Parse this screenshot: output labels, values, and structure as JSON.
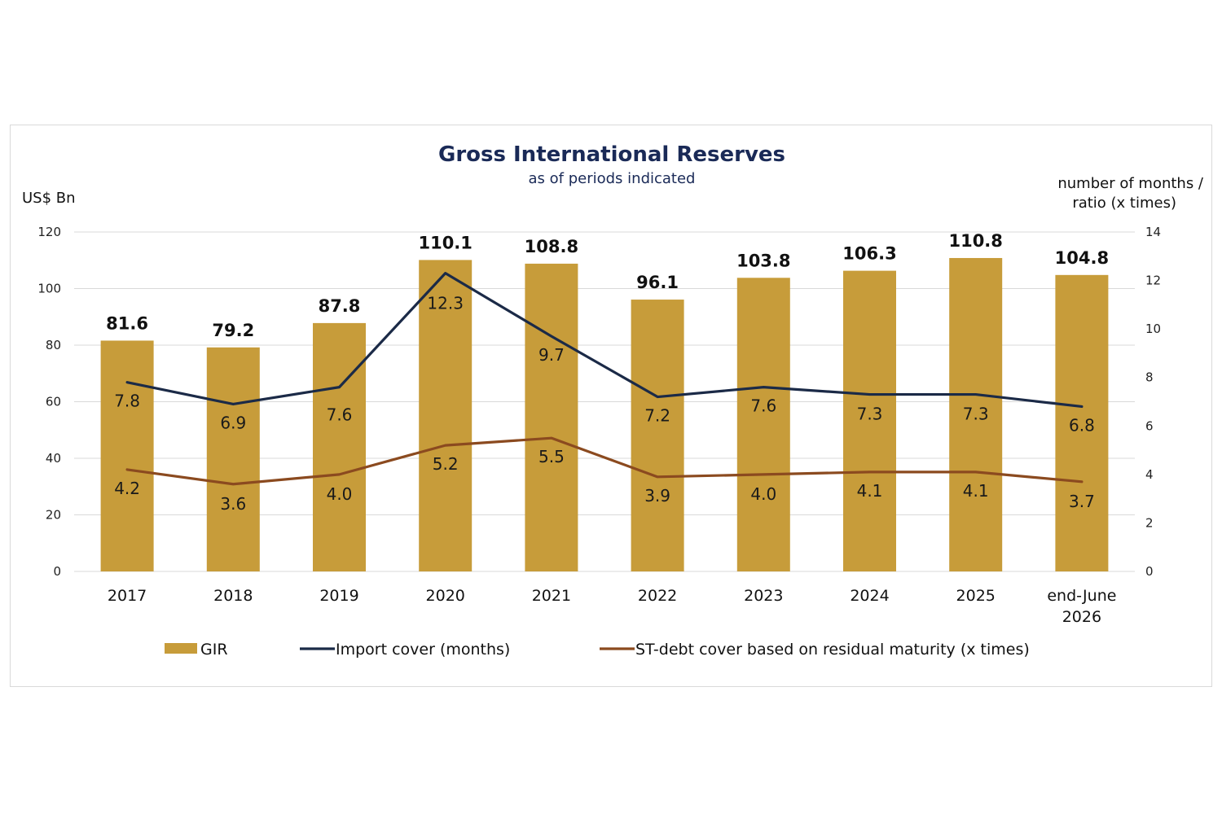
{
  "chart_data": {
    "type": "bar",
    "title": "Gross International Reserves",
    "subtitle": "as of periods indicated",
    "ylabel": "US$ Bn",
    "y2label_lines": [
      "number of months /",
      "ratio (x times)"
    ],
    "categories": [
      [
        "2017"
      ],
      [
        "2018"
      ],
      [
        "2019"
      ],
      [
        "2020"
      ],
      [
        "2021"
      ],
      [
        "2022"
      ],
      [
        "2023"
      ],
      [
        "2024"
      ],
      [
        "2025"
      ],
      [
        "end-June",
        "2026"
      ]
    ],
    "ylim": [
      0,
      120
    ],
    "yticks": [
      0,
      20,
      40,
      60,
      80,
      100,
      120
    ],
    "y2lim": [
      0,
      14
    ],
    "y2ticks": [
      0,
      2,
      4,
      6,
      8,
      10,
      12,
      14
    ],
    "grid": true,
    "legend_position": "bottom",
    "series": [
      {
        "name": "GIR",
        "type": "bar",
        "axis": "left",
        "color": "#c79c3a",
        "values": [
          81.6,
          79.2,
          87.8,
          110.1,
          108.8,
          96.1,
          103.8,
          106.3,
          110.8,
          104.8
        ],
        "labels": [
          "81.6",
          "79.2",
          "87.8",
          "110.1",
          "108.8",
          "96.1",
          "103.8",
          "106.3",
          "110.8",
          "104.8"
        ]
      },
      {
        "name": "Import cover (months)",
        "type": "line",
        "axis": "right",
        "color": "#1b2a47",
        "values": [
          7.8,
          6.9,
          7.6,
          12.3,
          9.7,
          7.2,
          7.6,
          7.3,
          7.3,
          6.8
        ],
        "labels": [
          "7.8",
          "6.9",
          "7.6",
          "12.3",
          "9.7",
          "7.2",
          "7.6",
          "7.3",
          "7.3",
          "6.8"
        ]
      },
      {
        "name": "ST-debt cover based on residual maturity (x times)",
        "type": "line",
        "axis": "right",
        "color": "#8b4a1f",
        "values": [
          4.2,
          3.6,
          4.0,
          5.2,
          5.5,
          3.9,
          4.0,
          4.1,
          4.1,
          3.7
        ],
        "labels": [
          "4.2",
          "3.6",
          "4.0",
          "5.2",
          "5.5",
          "3.9",
          "4.0",
          "4.1",
          "4.1",
          "3.7"
        ]
      }
    ]
  }
}
